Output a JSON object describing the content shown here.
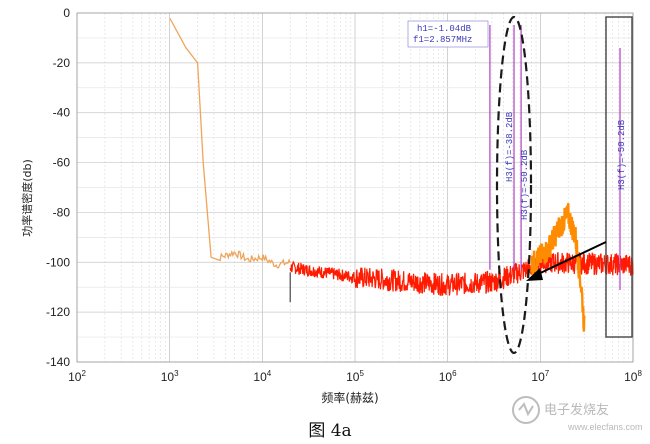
{
  "chart_data": {
    "type": "line",
    "title": "",
    "xlabel": "频率(赫兹)",
    "ylabel": "功率谱密度(db)",
    "xscale": "log",
    "xlim": [
      100,
      100000000
    ],
    "ylim": [
      -140,
      0
    ],
    "grid": true,
    "x_ticks": [
      {
        "base": "10",
        "exp": "2"
      },
      {
        "base": "10",
        "exp": "3"
      },
      {
        "base": "10",
        "exp": "4"
      },
      {
        "base": "10",
        "exp": "5"
      },
      {
        "base": "10",
        "exp": "6"
      },
      {
        "base": "10",
        "exp": "7"
      },
      {
        "base": "10",
        "exp": "8"
      }
    ],
    "y_ticks": [
      0,
      -20,
      -40,
      -60,
      -80,
      -100,
      -120,
      -140
    ],
    "series": [
      {
        "color": "#f0a45a",
        "x": [
          1000,
          1500,
          2000,
          2300,
          2800,
          3500,
          5000,
          7000,
          10000,
          14000,
          20000
        ],
        "y": [
          -2,
          -14,
          -20,
          -60,
          -98,
          -98,
          -96,
          -99,
          -98,
          -101,
          -100
        ]
      },
      {
        "color": "#ff1a00",
        "x": [
          20000,
          100000,
          1000000,
          3000000,
          7000000,
          10000000,
          100000000
        ],
        "y": [
          -102,
          -106,
          -109,
          -108,
          -103,
          -100,
          -101
        ]
      },
      {
        "color": "#ff8c00",
        "x": [
          8000000,
          12000000,
          16000000,
          20000000,
          24000000,
          28000000,
          30000000
        ],
        "y": [
          -101,
          -95,
          -86,
          -81,
          -90,
          -112,
          -127
        ]
      }
    ],
    "annotations": {
      "marker_box": [
        "h1=-1.04dB",
        "f1=2.857MHz"
      ],
      "vlabel_1": "H3(f)=-38.2dB",
      "vlabel_2": "H3(f)=-50.2dB",
      "vlabel_right": "H3(f)=-50.2dB"
    }
  },
  "caption": "图 4a",
  "watermark": {
    "text": "电子发烧友",
    "url": "www.elecfans.com"
  }
}
